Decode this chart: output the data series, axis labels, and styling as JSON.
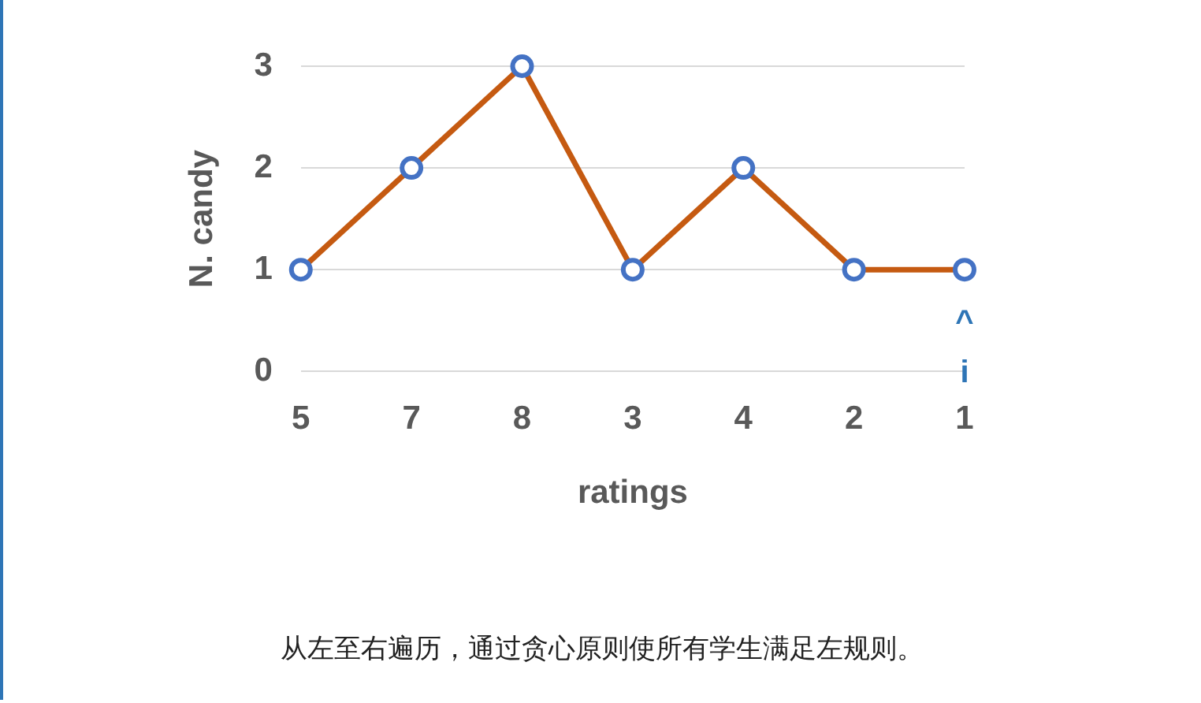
{
  "chart_data": {
    "type": "line",
    "xlabel": "ratings",
    "ylabel": "N. candy",
    "categories": [
      "5",
      "7",
      "8",
      "3",
      "4",
      "2",
      "1"
    ],
    "series": [
      {
        "color": "#c55a11",
        "values": [
          1,
          2,
          3,
          1,
          2,
          1,
          1
        ]
      }
    ],
    "ylim": [
      0,
      3
    ],
    "yticks": [
      0,
      1,
      2,
      3
    ],
    "grid": "y",
    "legend": false,
    "marker": "circle",
    "line_style": "solid",
    "annotations": [
      "^",
      "i",
      "从左至右遍历，通过贪心原则使所有学生满足左规则。"
    ]
  }
}
